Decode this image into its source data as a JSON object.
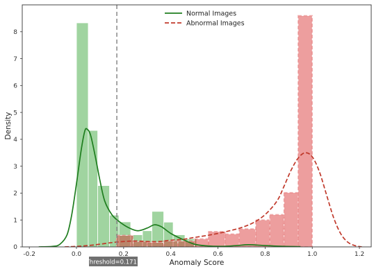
{
  "chart_data": {
    "type": "histogram+kde",
    "xlabel": "Anomaly Score",
    "ylabel": "Density",
    "xlim": [
      -0.23,
      1.25
    ],
    "ylim": [
      0,
      9.0
    ],
    "x_ticks": [
      -0.2,
      0.0,
      0.2,
      0.4,
      0.6,
      0.8,
      1.0,
      1.2
    ],
    "y_ticks": [
      0,
      1,
      2,
      3,
      4,
      5,
      6,
      7,
      8
    ],
    "grid": false,
    "legend_position": "top-center",
    "threshold": {
      "value": 0.1711,
      "label": "Threshold=0.1711",
      "color": "#888888",
      "badge_color": "#707070"
    },
    "series": [
      {
        "name": "Normal Images",
        "color": "#2ca02c",
        "kde_color": "#1e7d1e",
        "line_style": "solid",
        "bins": [
          {
            "x0": 0.0,
            "x1": 0.05,
            "density": 8.33
          },
          {
            "x0": 0.05,
            "x1": 0.09,
            "density": 4.33
          },
          {
            "x0": 0.09,
            "x1": 0.14,
            "density": 2.28
          },
          {
            "x0": 0.14,
            "x1": 0.18,
            "density": 1.18
          },
          {
            "x0": 0.18,
            "x1": 0.23,
            "density": 0.93
          },
          {
            "x0": 0.23,
            "x1": 0.28,
            "density": 0.45
          },
          {
            "x0": 0.28,
            "x1": 0.32,
            "density": 0.6
          },
          {
            "x0": 0.32,
            "x1": 0.37,
            "density": 1.32
          },
          {
            "x0": 0.37,
            "x1": 0.41,
            "density": 0.92
          },
          {
            "x0": 0.41,
            "x1": 0.46,
            "density": 0.45
          },
          {
            "x0": 0.46,
            "x1": 0.51,
            "density": 0.3
          }
        ],
        "kde": [
          [
            -0.16,
            0.0
          ],
          [
            -0.1,
            0.02
          ],
          [
            -0.07,
            0.1
          ],
          [
            -0.04,
            0.45
          ],
          [
            -0.02,
            1.2
          ],
          [
            0.0,
            2.35
          ],
          [
            0.02,
            3.6
          ],
          [
            0.035,
            4.3
          ],
          [
            0.045,
            4.38
          ],
          [
            0.06,
            4.15
          ],
          [
            0.08,
            3.35
          ],
          [
            0.1,
            2.45
          ],
          [
            0.12,
            1.7
          ],
          [
            0.15,
            1.2
          ],
          [
            0.18,
            0.95
          ],
          [
            0.22,
            0.72
          ],
          [
            0.26,
            0.6
          ],
          [
            0.3,
            0.7
          ],
          [
            0.33,
            0.82
          ],
          [
            0.36,
            0.75
          ],
          [
            0.4,
            0.5
          ],
          [
            0.45,
            0.28
          ],
          [
            0.5,
            0.1
          ],
          [
            0.55,
            0.04
          ],
          [
            0.62,
            0.02
          ],
          [
            0.68,
            0.05
          ],
          [
            0.73,
            0.08
          ],
          [
            0.8,
            0.05
          ],
          [
            0.88,
            0.02
          ],
          [
            0.95,
            0.01
          ]
        ]
      },
      {
        "name": "Abnormal Images",
        "color": "#d62728",
        "kde_color": "#c0392b",
        "line_style": "dashed",
        "bins": [
          {
            "x0": 0.17,
            "x1": 0.24,
            "density": 0.43
          },
          {
            "x0": 0.24,
            "x1": 0.3,
            "density": 0.2
          },
          {
            "x0": 0.3,
            "x1": 0.37,
            "density": 0.17
          },
          {
            "x0": 0.37,
            "x1": 0.43,
            "density": 0.22
          },
          {
            "x0": 0.43,
            "x1": 0.5,
            "density": 0.22
          },
          {
            "x0": 0.5,
            "x1": 0.56,
            "density": 0.3
          },
          {
            "x0": 0.56,
            "x1": 0.63,
            "density": 0.57
          },
          {
            "x0": 0.63,
            "x1": 0.69,
            "density": 0.48
          },
          {
            "x0": 0.69,
            "x1": 0.76,
            "density": 0.67
          },
          {
            "x0": 0.76,
            "x1": 0.82,
            "density": 1.0
          },
          {
            "x0": 0.82,
            "x1": 0.88,
            "density": 1.2
          },
          {
            "x0": 0.88,
            "x1": 0.94,
            "density": 2.02
          },
          {
            "x0": 0.94,
            "x1": 1.0,
            "density": 8.6
          }
        ],
        "kde": [
          [
            -0.05,
            0.0
          ],
          [
            0.0,
            0.02
          ],
          [
            0.05,
            0.05
          ],
          [
            0.1,
            0.1
          ],
          [
            0.15,
            0.16
          ],
          [
            0.2,
            0.2
          ],
          [
            0.25,
            0.22
          ],
          [
            0.3,
            0.2
          ],
          [
            0.35,
            0.2
          ],
          [
            0.4,
            0.25
          ],
          [
            0.45,
            0.28
          ],
          [
            0.5,
            0.35
          ],
          [
            0.55,
            0.42
          ],
          [
            0.6,
            0.5
          ],
          [
            0.65,
            0.6
          ],
          [
            0.7,
            0.72
          ],
          [
            0.75,
            0.9
          ],
          [
            0.8,
            1.2
          ],
          [
            0.85,
            1.7
          ],
          [
            0.88,
            2.25
          ],
          [
            0.91,
            2.85
          ],
          [
            0.94,
            3.3
          ],
          [
            0.97,
            3.5
          ],
          [
            1.0,
            3.35
          ],
          [
            1.03,
            2.8
          ],
          [
            1.06,
            1.95
          ],
          [
            1.09,
            1.1
          ],
          [
            1.12,
            0.5
          ],
          [
            1.15,
            0.18
          ],
          [
            1.18,
            0.05
          ],
          [
            1.21,
            0.0
          ]
        ]
      }
    ]
  }
}
